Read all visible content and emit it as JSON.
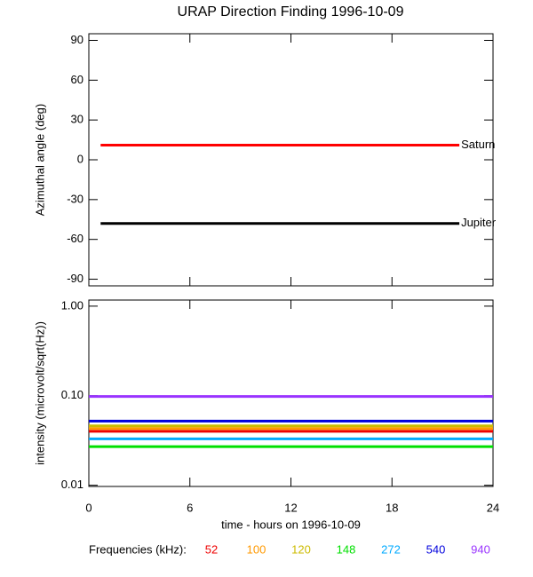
{
  "chart_data": [
    {
      "type": "line",
      "title": "URAP Direction Finding  1996-10-09",
      "ylabel": "Azimuthal angle (deg)",
      "legend": "line-end",
      "x": [
        0.7,
        22
      ],
      "xlim": [
        0,
        24
      ],
      "xticks": [
        0,
        6,
        12,
        18,
        24
      ],
      "ylim": [
        -95,
        95
      ],
      "yticks": [
        90,
        60,
        30,
        0,
        -30,
        -60,
        -90
      ],
      "series": [
        {
          "name": "Saturn",
          "color": "#ff0000",
          "values": [
            11,
            11
          ]
        },
        {
          "name": "Jupiter",
          "color": "#000000",
          "values": [
            -48,
            -48
          ]
        }
      ]
    },
    {
      "type": "line",
      "ylabel": "intensity (microvolt/sqrt(Hz))",
      "xlabel": "time - hours on 1996-10-09",
      "legend": "bottom",
      "legend_title": "Frequencies (kHz):",
      "log_y": true,
      "x": [
        0,
        12,
        24
      ],
      "xlim": [
        0,
        24
      ],
      "xticks": [
        0,
        6,
        12,
        18,
        24
      ],
      "ylim": [
        0.0097,
        1.17
      ],
      "yticks": [
        {
          "value": 1,
          "label": "1.00"
        },
        {
          "value": 0.1,
          "label": "0.10"
        },
        {
          "value": 0.01,
          "label": "0.01"
        }
      ],
      "series": [
        {
          "name": "52",
          "color": "#ee0000",
          "values": [
            0.04,
            0.04,
            0.04
          ]
        },
        {
          "name": "100",
          "color": "#ff9900",
          "values": [
            0.043,
            0.043,
            0.043
          ]
        },
        {
          "name": "120",
          "color": "#ccbb00",
          "values": [
            0.046,
            0.046,
            0.046
          ]
        },
        {
          "name": "148",
          "color": "#00e000",
          "values": [
            0.027,
            0.027,
            0.027
          ]
        },
        {
          "name": "272",
          "color": "#00aaff",
          "values": [
            0.033,
            0.033,
            0.033
          ]
        },
        {
          "name": "540",
          "color": "#0000dd",
          "values": [
            0.052,
            0.052,
            0.052
          ]
        },
        {
          "name": "940",
          "color": "#9933ff",
          "values": [
            0.098,
            0.098,
            0.098
          ]
        }
      ]
    }
  ]
}
